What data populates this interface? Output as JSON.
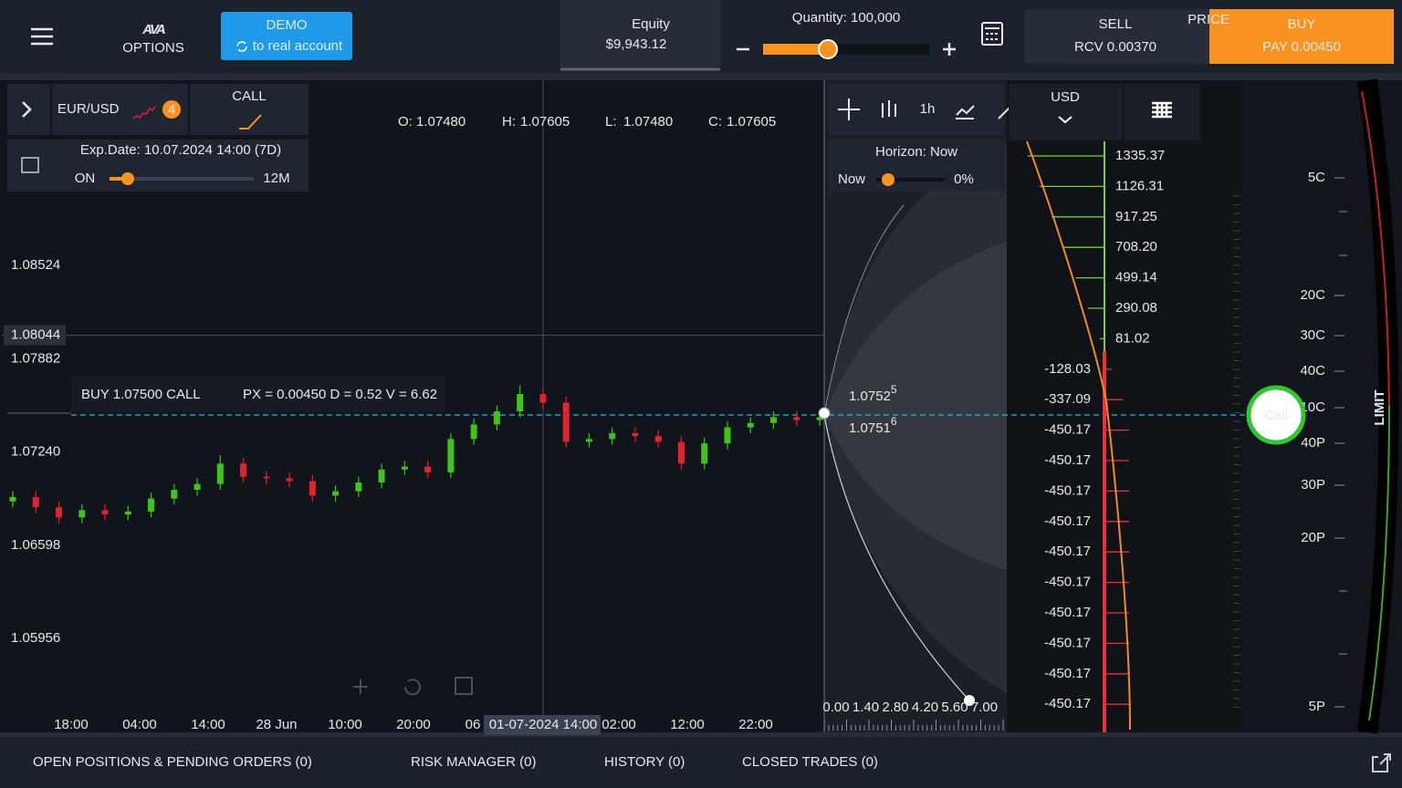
{
  "top_bar": {
    "logo": "AVA",
    "logo_sub": "OPTIONS",
    "demo": "DEMO",
    "demo_sub": "to real account",
    "equity_label": "Equity",
    "equity": "$9,943.12",
    "quantity": "Quantity: 100,000",
    "sell": "SELL",
    "sell_sub": "RCV 0.00370",
    "price": "PRICE",
    "buy": "BUY",
    "buy_sub": "PAY 0.00450"
  },
  "instrument": {
    "symbol": "EUR/USD",
    "badge": "4",
    "option": "CALL",
    "expiry": "Exp.Date: 10.07.2024 14:00 (7D)",
    "on": "ON",
    "range": "12M"
  },
  "ohlc": [
    {
      "label": "O:",
      "value": "1.07480"
    },
    {
      "label": "H:",
      "value": "1.07605"
    },
    {
      "label": "L:",
      "value": "1.07480"
    },
    {
      "label": "C:",
      "value": "1.07605"
    }
  ],
  "chart": {
    "ylim": [
      1.0531,
      1.098
    ],
    "yticks": [
      1.08524,
      1.07882,
      {
        "value": 1.0724,
        "label": "1.07240"
      },
      1.06598,
      1.05956
    ],
    "crosshair": 1.08044,
    "time_labels": [
      "18:00",
      "04:00",
      "14:00",
      "28 Jun",
      "10:00",
      "20:00",
      "06",
      "02:00",
      "12:00",
      "22:00"
    ],
    "cursor_time": "01-07-2024 14:00",
    "open": [
      1.069,
      1.0693,
      1.0686,
      1.0679,
      1.0684,
      1.0681,
      1.0683,
      1.0692,
      1.0698,
      1.0702,
      1.0716,
      1.0707,
      1.0706,
      1.0704,
      1.0694,
      1.0697,
      1.0703,
      1.0712,
      1.0714,
      1.071,
      1.0733,
      1.0743,
      1.0752,
      1.0764,
      1.0758,
      1.0731,
      1.0733,
      1.0737,
      1.0735,
      1.0731,
      1.0716,
      1.073,
      1.0741,
      1.0744,
      1.0748,
      1.0746
    ],
    "high": [
      1.0697,
      1.0697,
      1.069,
      1.0688,
      1.0688,
      1.0687,
      1.0696,
      1.0702,
      1.0706,
      1.0722,
      1.072,
      1.0711,
      1.071,
      1.0708,
      1.0701,
      1.0707,
      1.0716,
      1.0718,
      1.0718,
      1.0737,
      1.0747,
      1.0756,
      1.077,
      1.0768,
      1.0762,
      1.0737,
      1.0741,
      1.0741,
      1.0739,
      1.0735,
      1.0734,
      1.0745,
      1.0748,
      1.0752,
      1.0752,
      1.0752
    ],
    "low": [
      1.0686,
      1.0682,
      1.0675,
      1.0675,
      1.0677,
      1.0677,
      1.0679,
      1.0688,
      1.0694,
      1.0698,
      1.0703,
      1.0702,
      1.07,
      1.069,
      1.069,
      1.0693,
      1.0699,
      1.0708,
      1.0706,
      1.0706,
      1.0729,
      1.0739,
      1.0748,
      1.0754,
      1.0727,
      1.0727,
      1.0729,
      1.0731,
      1.0727,
      1.0712,
      1.0712,
      1.0726,
      1.0737,
      1.074,
      1.0742,
      1.0742
    ],
    "close": [
      1.0693,
      1.0686,
      1.0679,
      1.0684,
      1.0681,
      1.0683,
      1.0692,
      1.0698,
      1.0702,
      1.0716,
      1.0707,
      1.0706,
      1.0704,
      1.0694,
      1.0697,
      1.0703,
      1.0712,
      1.0714,
      1.071,
      1.0733,
      1.0743,
      1.0752,
      1.0764,
      1.0758,
      1.0731,
      1.0733,
      1.0737,
      1.0735,
      1.0731,
      1.0716,
      1.073,
      1.0741,
      1.0744,
      1.0748,
      1.0746,
      1.0748
    ]
  },
  "order": {
    "title": "BUY 1.07500 CALL",
    "greeks": "PX = 0.00450 D = 0.52 V = 6.62"
  },
  "tools": {
    "interval": "1h",
    "currency": "USD",
    "horizon": "Horizon: Now",
    "now": "Now",
    "percent": "0%"
  },
  "price_tags": [
    {
      "main": "1.0752",
      "sup": "5"
    },
    {
      "main": "1.0751",
      "sup": "6"
    }
  ],
  "horizon_axis": [
    "0.00",
    "1.40",
    "2.80",
    "4.20",
    "5.60",
    "7.00"
  ],
  "payoff": [
    1335.37,
    1126.31,
    917.25,
    {
      "value": 708.2,
      "label": "708.20"
    },
    499.14,
    290.08,
    81.02,
    -128.03,
    -337.09,
    -450.17,
    -450.17,
    -450.17,
    -450.17,
    -450.17,
    -450.17,
    -450.17,
    -450.17,
    -450.17,
    -450.17
  ],
  "gauge": {
    "labels": [
      "5C",
      "20C",
      "30C",
      "40C",
      "10C",
      "40P",
      "30P",
      "20P",
      "5P"
    ],
    "limit": "LIMIT",
    "button": "Call"
  },
  "tabs": [
    "OPEN POSITIONS & PENDING ORDERS (0)",
    "RISK MANAGER (0)",
    "HISTORY (0)",
    "CLOSED TRADES (0)"
  ]
}
